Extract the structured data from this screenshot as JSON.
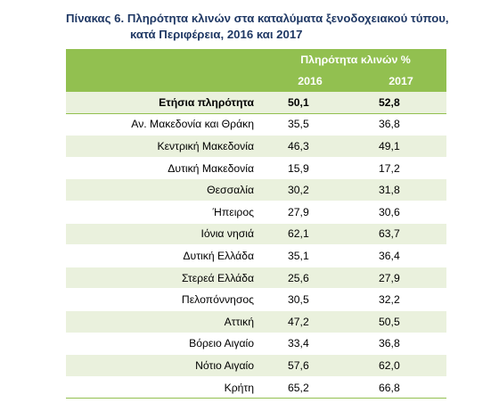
{
  "title": {
    "line1": "Πίνακας 6. Πληρότητα  κλινών στα καταλύματα ξενοδοχειακού τύπου,",
    "line2": "κατά Περιφέρεια, 2016 και 2017"
  },
  "table": {
    "group_header": "Πληρότητα κλινών %",
    "years": [
      "2016",
      "2017"
    ],
    "total": {
      "region": "Ετήσια πληρότητα",
      "v2016": "50,1",
      "v2017": "52,8"
    },
    "rows": [
      {
        "region": "Αν. Μακεδονία και Θράκη",
        "v2016": "35,5",
        "v2017": "36,8"
      },
      {
        "region": "Κεντρική Μακεδονία",
        "v2016": "46,3",
        "v2017": "49,1"
      },
      {
        "region": "Δυτική Μακεδονία",
        "v2016": "15,9",
        "v2017": "17,2"
      },
      {
        "region": "Θεσσαλία",
        "v2016": "30,2",
        "v2017": "31,8"
      },
      {
        "region": "Ήπειρος",
        "v2016": "27,9",
        "v2017": "30,6"
      },
      {
        "region": "Ιόνια νησιά",
        "v2016": "62,1",
        "v2017": "63,7"
      },
      {
        "region": "Δυτική Ελλάδα",
        "v2016": "35,1",
        "v2017": "36,4"
      },
      {
        "region": "Στερεά Ελλάδα",
        "v2016": "25,6",
        "v2017": "27,9"
      },
      {
        "region": "Πελοπόννησος",
        "v2016": "30,5",
        "v2017": "32,2"
      },
      {
        "region": "Αττική",
        "v2016": "47,2",
        "v2017": "50,5"
      },
      {
        "region": "Βόρειο Αιγαίο",
        "v2016": "33,4",
        "v2017": "36,8"
      },
      {
        "region": "Νότιο Αιγαίο",
        "v2016": "57,6",
        "v2017": "62,0"
      },
      {
        "region": "Κρήτη",
        "v2016": "65,2",
        "v2017": "66,8"
      }
    ]
  },
  "colors": {
    "header_green": "#92c050",
    "band_light_green": "#eaf1dd",
    "title_navy": "#1f3864"
  }
}
